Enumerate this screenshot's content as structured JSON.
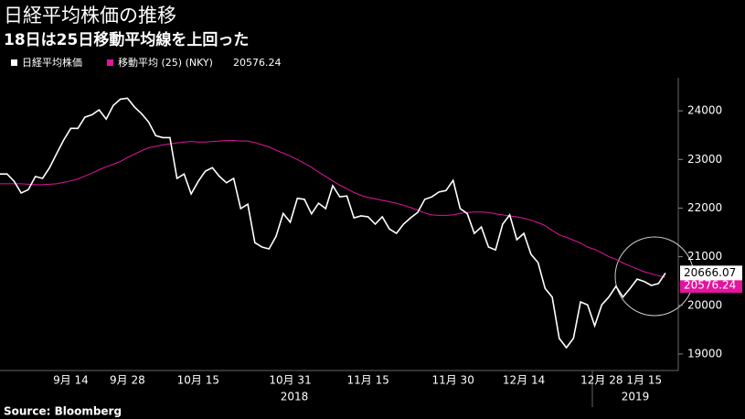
{
  "chart_data": {
    "type": "line",
    "title": "日経平均株価の推移",
    "subtitle": "18日は25日移動平均線を上回った",
    "source": "Source:  Bloomberg",
    "years": [
      "2018",
      "2019"
    ],
    "categories": [
      null,
      null,
      null,
      null,
      null,
      null,
      null,
      null,
      null,
      null,
      "9月 14",
      null,
      null,
      null,
      null,
      null,
      null,
      null,
      "9月 28",
      null,
      null,
      null,
      null,
      null,
      null,
      null,
      null,
      null,
      "10月 15",
      null,
      null,
      null,
      null,
      null,
      null,
      null,
      null,
      null,
      null,
      null,
      null,
      "10月 31",
      null,
      null,
      null,
      null,
      null,
      null,
      null,
      null,
      null,
      null,
      "11月 15",
      null,
      null,
      null,
      null,
      null,
      null,
      null,
      null,
      null,
      null,
      null,
      "11月 30",
      null,
      null,
      null,
      null,
      null,
      null,
      null,
      null,
      null,
      "12月 14",
      null,
      null,
      null,
      null,
      null,
      null,
      null,
      null,
      null,
      null,
      "12月 28",
      null,
      null,
      null,
      null,
      null,
      "1月 15",
      null,
      null,
      null
    ],
    "series": [
      {
        "name": "日経平均株価",
        "color": "#ffffff",
        "values": [
          22700,
          22700,
          22550,
          22310,
          22380,
          22650,
          22610,
          22830,
          23120,
          23400,
          23640,
          23640,
          23870,
          23920,
          24020,
          23830,
          24110,
          24240,
          24260,
          24080,
          23940,
          23770,
          23490,
          23450,
          23450,
          22610,
          22700,
          22290,
          22550,
          22760,
          22830,
          22650,
          22520,
          22610,
          21990,
          22080,
          21290,
          21200,
          21160,
          21420,
          21890,
          21710,
          22200,
          22180,
          21880,
          22100,
          21990,
          22460,
          22230,
          22250,
          21800,
          21840,
          21820,
          21670,
          21820,
          21570,
          21480,
          21670,
          21800,
          21910,
          22180,
          22230,
          22330,
          22360,
          22570,
          21990,
          21890,
          21480,
          21610,
          21200,
          21140,
          21670,
          21860,
          21350,
          21480,
          21050,
          20880,
          20350,
          20170,
          19320,
          19130,
          19320,
          20070,
          20010,
          19580,
          20010,
          20170,
          20390,
          20170,
          20350,
          20540,
          20490,
          20410,
          20450,
          20666.07
        ]
      },
      {
        "name": "移動平均 (25) (NKY)",
        "color": "#e0169c",
        "values": [
          22500,
          22500,
          22500,
          22500,
          22490,
          22480,
          22480,
          22490,
          22500,
          22530,
          22560,
          22600,
          22660,
          22720,
          22790,
          22850,
          22900,
          22960,
          23040,
          23110,
          23180,
          23240,
          23270,
          23300,
          23320,
          23340,
          23360,
          23370,
          23360,
          23360,
          23370,
          23380,
          23390,
          23390,
          23380,
          23380,
          23350,
          23300,
          23260,
          23190,
          23130,
          23070,
          23000,
          22920,
          22840,
          22740,
          22650,
          22560,
          22470,
          22400,
          22320,
          22260,
          22220,
          22190,
          22160,
          22130,
          22100,
          22060,
          22010,
          21960,
          21900,
          21860,
          21850,
          21850,
          21860,
          21890,
          21910,
          21920,
          21920,
          21910,
          21880,
          21860,
          21840,
          21820,
          21790,
          21750,
          21700,
          21640,
          21540,
          21450,
          21400,
          21340,
          21280,
          21200,
          21150,
          21080,
          21000,
          20950,
          20870,
          20810,
          20750,
          20690,
          20650,
          20610,
          20576.24
        ]
      }
    ],
    "ylim": [
      18660,
      24680
    ],
    "yticks": [
      19000,
      20000,
      21000,
      22000,
      23000,
      24000
    ]
  }
}
